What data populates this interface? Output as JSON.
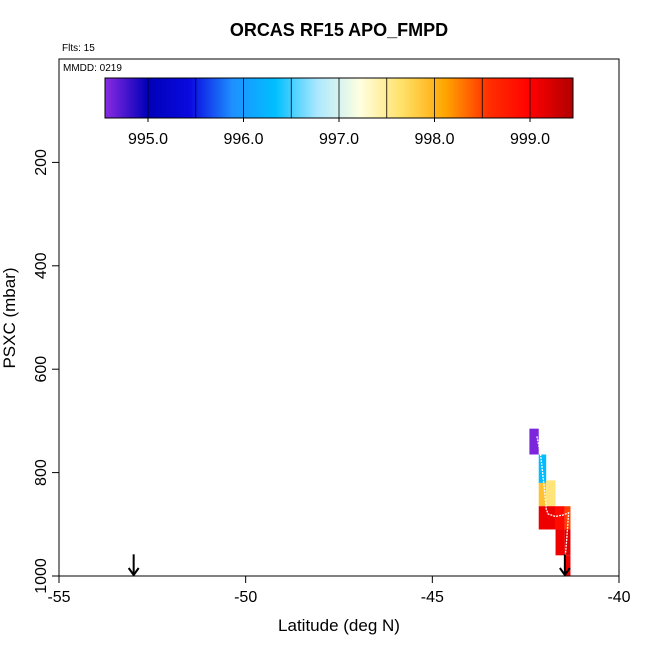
{
  "chart_data": {
    "type": "heatmap",
    "title": "ORCAS RF15 APO_FMPD",
    "flights_label": "Flts: 15",
    "date_label": "MMDD: 0219",
    "xlabel": "Latitude (deg N)",
    "ylabel": "PSXC (mbar)",
    "xlim": [
      -55,
      -40
    ],
    "ylim": [
      1000,
      0
    ],
    "x_ticks": [
      -55,
      -50,
      -45,
      -40
    ],
    "y_ticks": [
      200,
      400,
      600,
      800,
      1000
    ],
    "colorbar": {
      "range": [
        994.55,
        999.45
      ],
      "tick_values": [
        995.0,
        996.0,
        997.0,
        998.0,
        999.0
      ],
      "tick_labels": [
        "995.0",
        "996.0",
        "997.0",
        "998.0",
        "999.0"
      ],
      "colors": [
        "#8a2be2",
        "#0000b8",
        "#0a0ae0",
        "#1e90ff",
        "#00bfff",
        "#ade8ff",
        "#ffffe0",
        "#ffe066",
        "#ffa500",
        "#ff3000",
        "#ff0000",
        "#b00000"
      ]
    },
    "cells": [
      {
        "lat0": -42.4,
        "lat1": -42.15,
        "p0": 715,
        "p1": 765,
        "value": 994.6
      },
      {
        "lat0": -42.15,
        "lat1": -41.95,
        "p0": 765,
        "p1": 820,
        "value": 996.3
      },
      {
        "lat0": -42.15,
        "lat1": -41.95,
        "p0": 820,
        "p1": 865,
        "value": 997.9
      },
      {
        "lat0": -41.95,
        "lat1": -41.7,
        "p0": 815,
        "p1": 865,
        "value": 997.6
      },
      {
        "lat0": -42.15,
        "lat1": -41.7,
        "p0": 865,
        "p1": 910,
        "value": 999.1
      },
      {
        "lat0": -41.7,
        "lat1": -41.45,
        "p0": 865,
        "p1": 910,
        "value": 998.9
      },
      {
        "lat0": -41.45,
        "lat1": -41.3,
        "p0": 865,
        "p1": 910,
        "value": 998.5
      },
      {
        "lat0": -41.7,
        "lat1": -41.45,
        "p0": 910,
        "p1": 960,
        "value": 999.1
      },
      {
        "lat0": -41.45,
        "lat1": -41.3,
        "p0": 910,
        "p1": 960,
        "value": 999.2
      },
      {
        "lat0": -41.45,
        "lat1": -41.3,
        "p0": 960,
        "p1": 1000,
        "value": 999.1
      }
    ],
    "flight_track": [
      [
        -42.2,
        730
      ],
      [
        -42.1,
        765
      ],
      [
        -42.0,
        830
      ],
      [
        -41.95,
        870
      ],
      [
        -41.9,
        880
      ],
      [
        -41.7,
        885
      ],
      [
        -41.5,
        882
      ],
      [
        -41.35,
        878
      ],
      [
        -41.4,
        930
      ],
      [
        -41.45,
        970
      ],
      [
        -41.5,
        995
      ]
    ],
    "arrows": [
      {
        "lat": -53.0,
        "p": 960,
        "label": ""
      },
      {
        "lat": -41.45,
        "p": 960,
        "label": ""
      }
    ]
  }
}
